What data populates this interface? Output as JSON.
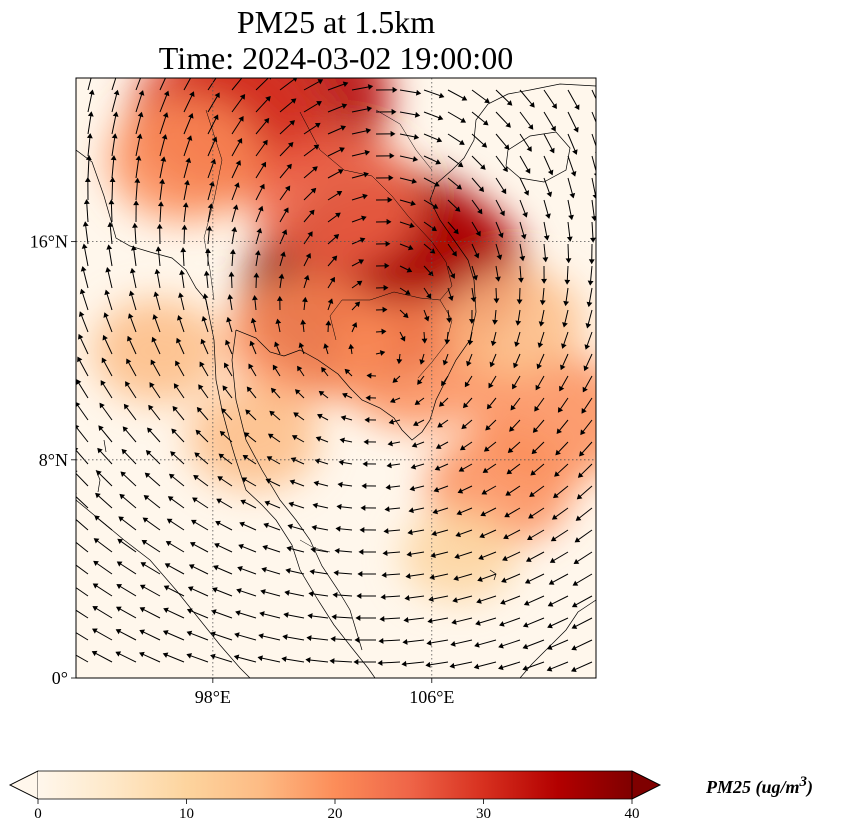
{
  "title_line1": "PM25 at 1.5km",
  "title_line2": "Time: 2024-03-02 19:00:00",
  "map": {
    "lon_range": [
      93,
      112
    ],
    "lat_range": [
      0,
      22
    ],
    "lat_ticks": [
      {
        "value": 16,
        "label": "16°N"
      },
      {
        "value": 8,
        "label": "8°N"
      },
      {
        "value": 0,
        "label": "0°"
      }
    ],
    "lon_ticks": [
      {
        "value": 98,
        "label": "98°E"
      },
      {
        "value": 106,
        "label": "106°E"
      }
    ],
    "gridlines": true
  },
  "colorbar": {
    "label_text": "PM25 (ug/m",
    "label_sup": "3",
    "label_close": ")",
    "min": 0,
    "max": 40,
    "ticks": [
      "0",
      "10",
      "20",
      "30",
      "40"
    ],
    "colormap": "OrRd",
    "colors": [
      "#fff7ec",
      "#fee8c8",
      "#fdd49e",
      "#fdbb84",
      "#fc8d59",
      "#ef6548",
      "#d7301f",
      "#b30000",
      "#7f0000"
    ],
    "extend": "both"
  },
  "pm25_hotspots": [
    {
      "lon": 104.5,
      "lat": 15.2,
      "value": 40
    },
    {
      "lon": 103.2,
      "lat": 14.0,
      "value": 38
    },
    {
      "lon": 105.5,
      "lat": 14.8,
      "value": 36
    },
    {
      "lon": 100.5,
      "lat": 21.3,
      "value": 36
    },
    {
      "lon": 98.5,
      "lat": 20.5,
      "value": 30
    },
    {
      "lon": 102.5,
      "lat": 17.5,
      "value": 24
    },
    {
      "lon": 101.5,
      "lat": 12.5,
      "value": 22
    },
    {
      "lon": 105.5,
      "lat": 11.5,
      "value": 22
    },
    {
      "lon": 97.0,
      "lat": 19.0,
      "value": 20
    },
    {
      "lon": 110.5,
      "lat": 9.5,
      "value": 22
    },
    {
      "lon": 108.5,
      "lat": 7.0,
      "value": 18
    },
    {
      "lon": 96.0,
      "lat": 12.0,
      "value": 14
    },
    {
      "lon": 99.5,
      "lat": 8.8,
      "value": 14
    },
    {
      "lon": 109.0,
      "lat": 13.0,
      "value": 16
    },
    {
      "lon": 107.0,
      "lat": 4.5,
      "value": 10
    }
  ]
}
